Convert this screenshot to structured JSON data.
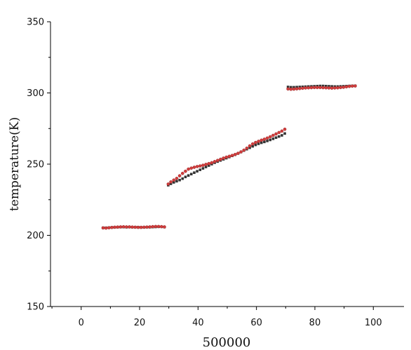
{
  "chart_data": {
    "type": "scatter",
    "title": "",
    "xlabel": "500000",
    "ylabel": "temperature(K)",
    "xlim": [
      -10.5,
      110.5
    ],
    "ylim": [
      150,
      350
    ],
    "x_ticks": [
      0,
      20,
      40,
      60,
      80,
      100
    ],
    "y_ticks": [
      150,
      200,
      250,
      300,
      350
    ],
    "grid": false,
    "legend": "none",
    "series": [
      {
        "color": "#333333",
        "marker": "square",
        "points": [
          [
            7.5,
            205.3
          ],
          [
            8.5,
            205.3
          ],
          [
            9.5,
            205.4
          ],
          [
            10.5,
            205.6
          ],
          [
            11.5,
            205.6
          ],
          [
            12.5,
            205.7
          ],
          [
            13.5,
            205.8
          ],
          [
            14.5,
            205.8
          ],
          [
            15.5,
            205.7
          ],
          [
            16.5,
            205.8
          ],
          [
            17.5,
            205.7
          ],
          [
            18.5,
            205.7
          ],
          [
            19.5,
            205.7
          ],
          [
            20.5,
            205.6
          ],
          [
            21.5,
            205.6
          ],
          [
            22.5,
            205.7
          ],
          [
            23.5,
            205.7
          ],
          [
            24.5,
            205.8
          ],
          [
            25.5,
            205.9
          ],
          [
            26.5,
            206.0
          ],
          [
            27.5,
            206.0
          ],
          [
            28.5,
            205.8
          ],
          [
            29.8,
            235.2
          ],
          [
            30.7,
            236.2
          ],
          [
            31.7,
            237.2
          ],
          [
            32.7,
            238.0
          ],
          [
            33.7,
            238.8
          ],
          [
            34.7,
            239.8
          ],
          [
            35.7,
            241.0
          ],
          [
            36.7,
            242.0
          ],
          [
            37.7,
            243.0
          ],
          [
            38.7,
            244.0
          ],
          [
            39.7,
            245.0
          ],
          [
            40.7,
            246.0
          ],
          [
            41.7,
            247.0
          ],
          [
            42.7,
            248.0
          ],
          [
            43.7,
            249.0
          ],
          [
            44.7,
            250.0
          ],
          [
            45.7,
            251.0
          ],
          [
            46.7,
            251.8
          ],
          [
            47.7,
            252.6
          ],
          [
            48.7,
            253.4
          ],
          [
            49.7,
            254.2
          ],
          [
            50.7,
            255.0
          ],
          [
            51.7,
            255.8
          ],
          [
            52.7,
            256.6
          ],
          [
            53.7,
            257.5
          ],
          [
            54.7,
            258.5
          ],
          [
            55.7,
            259.5
          ],
          [
            56.7,
            260.5
          ],
          [
            57.7,
            261.5
          ],
          [
            58.7,
            262.5
          ],
          [
            59.7,
            263.5
          ],
          [
            60.7,
            264.3
          ],
          [
            61.7,
            265.0
          ],
          [
            62.7,
            265.6
          ],
          [
            63.7,
            266.3
          ],
          [
            64.7,
            267.0
          ],
          [
            65.7,
            267.8
          ],
          [
            66.7,
            268.6
          ],
          [
            67.7,
            269.4
          ],
          [
            68.7,
            270.2
          ],
          [
            69.7,
            271.5
          ],
          [
            70.8,
            304.2
          ],
          [
            71.8,
            304.0
          ],
          [
            72.8,
            304.0
          ],
          [
            73.8,
            304.1
          ],
          [
            74.8,
            304.2
          ],
          [
            75.8,
            304.3
          ],
          [
            76.8,
            304.4
          ],
          [
            77.8,
            304.5
          ],
          [
            78.8,
            304.6
          ],
          [
            79.8,
            304.7
          ],
          [
            80.8,
            304.8
          ],
          [
            81.8,
            304.9
          ],
          [
            82.8,
            304.9
          ],
          [
            83.8,
            304.8
          ],
          [
            84.8,
            304.7
          ],
          [
            85.8,
            304.6
          ],
          [
            86.8,
            304.5
          ],
          [
            87.8,
            304.5
          ],
          [
            88.8,
            304.6
          ],
          [
            89.8,
            304.7
          ],
          [
            90.8,
            304.8
          ],
          [
            91.8,
            304.9
          ],
          [
            92.8,
            305.0
          ],
          [
            93.8,
            305.0
          ]
        ]
      },
      {
        "color": "#d23c3c",
        "marker": "circle",
        "points": [
          [
            7.5,
            205.2
          ],
          [
            8.5,
            205.1
          ],
          [
            9.5,
            205.3
          ],
          [
            10.5,
            205.5
          ],
          [
            11.5,
            205.7
          ],
          [
            12.5,
            205.8
          ],
          [
            13.5,
            205.9
          ],
          [
            14.5,
            206.0
          ],
          [
            15.5,
            205.9
          ],
          [
            16.5,
            205.9
          ],
          [
            17.5,
            205.8
          ],
          [
            18.5,
            205.7
          ],
          [
            19.5,
            205.6
          ],
          [
            20.5,
            205.6
          ],
          [
            21.5,
            205.7
          ],
          [
            22.5,
            205.8
          ],
          [
            23.5,
            205.9
          ],
          [
            24.5,
            206.1
          ],
          [
            25.5,
            206.2
          ],
          [
            26.5,
            206.2
          ],
          [
            27.5,
            206.1
          ],
          [
            28.5,
            205.9
          ],
          [
            29.8,
            236.0
          ],
          [
            30.7,
            237.5
          ],
          [
            31.7,
            238.8
          ],
          [
            32.7,
            240.0
          ],
          [
            33.7,
            241.8
          ],
          [
            34.7,
            243.5
          ],
          [
            35.7,
            245.0
          ],
          [
            36.7,
            246.5
          ],
          [
            37.7,
            247.2
          ],
          [
            38.7,
            247.8
          ],
          [
            39.7,
            248.3
          ],
          [
            40.7,
            248.7
          ],
          [
            41.7,
            249.2
          ],
          [
            42.7,
            249.8
          ],
          [
            43.7,
            250.4
          ],
          [
            44.7,
            251.0
          ],
          [
            45.7,
            251.8
          ],
          [
            46.7,
            252.6
          ],
          [
            47.7,
            253.4
          ],
          [
            48.7,
            254.2
          ],
          [
            49.7,
            254.9
          ],
          [
            50.7,
            255.5
          ],
          [
            51.7,
            256.1
          ],
          [
            52.7,
            256.8
          ],
          [
            53.7,
            257.6
          ],
          [
            54.7,
            258.6
          ],
          [
            55.7,
            259.8
          ],
          [
            56.7,
            261.2
          ],
          [
            57.7,
            262.8
          ],
          [
            58.7,
            264.2
          ],
          [
            59.7,
            265.2
          ],
          [
            60.7,
            266.0
          ],
          [
            61.7,
            266.8
          ],
          [
            62.7,
            267.5
          ],
          [
            63.7,
            268.3
          ],
          [
            64.7,
            269.2
          ],
          [
            65.7,
            270.2
          ],
          [
            66.7,
            271.2
          ],
          [
            67.7,
            272.2
          ],
          [
            68.7,
            273.2
          ],
          [
            69.7,
            274.5
          ],
          [
            70.8,
            302.8
          ],
          [
            71.8,
            302.6
          ],
          [
            72.8,
            302.7
          ],
          [
            73.8,
            302.9
          ],
          [
            74.8,
            303.1
          ],
          [
            75.8,
            303.3
          ],
          [
            76.8,
            303.5
          ],
          [
            77.8,
            303.6
          ],
          [
            78.8,
            303.7
          ],
          [
            79.8,
            303.8
          ],
          [
            80.8,
            303.8
          ],
          [
            81.8,
            303.8
          ],
          [
            82.8,
            303.7
          ],
          [
            83.8,
            303.6
          ],
          [
            84.8,
            303.5
          ],
          [
            85.8,
            303.4
          ],
          [
            86.8,
            303.5
          ],
          [
            87.8,
            303.6
          ],
          [
            88.8,
            303.8
          ],
          [
            89.8,
            304.0
          ],
          [
            90.8,
            304.3
          ],
          [
            91.8,
            304.6
          ],
          [
            92.8,
            304.8
          ],
          [
            93.8,
            304.9
          ]
        ]
      }
    ]
  }
}
